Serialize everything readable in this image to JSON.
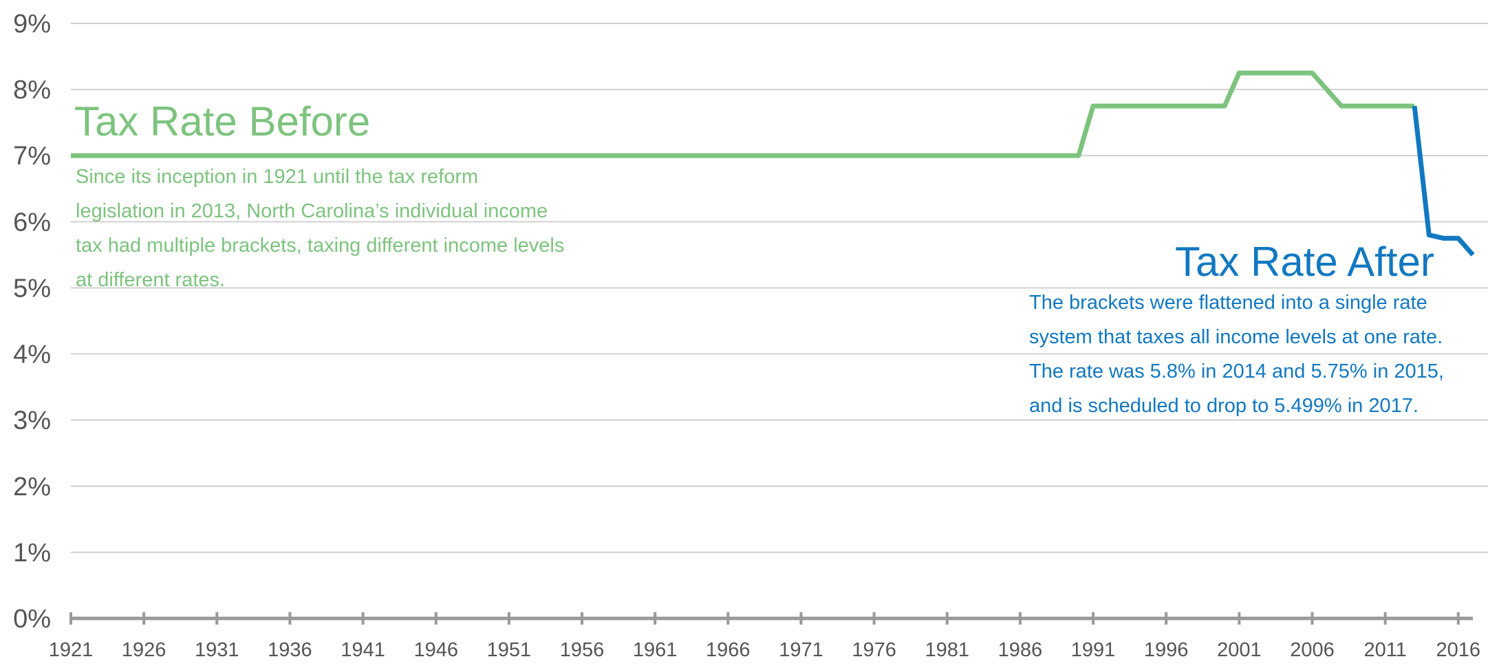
{
  "colors": {
    "before": "#7dc37e",
    "after": "#1278c0",
    "grid": "#d0d0d0",
    "axis": "#999999",
    "tick_text": "#555555"
  },
  "annotations": {
    "before_title": "Tax Rate Before",
    "before_body": "Since its inception in 1921 until the tax reform legislation in 2013, North Carolina’s individual income tax had multiple brackets, taxing different income levels at different rates.",
    "after_title": "Tax Rate After",
    "after_body": "The brackets were flattened into a single rate system that taxes all income levels at one rate. The rate was 5.8% in 2014 and 5.75% in 2015, and is scheduled to drop to 5.499% in 2017."
  },
  "chart_data": {
    "type": "line",
    "title": "",
    "xlabel": "",
    "ylabel": "",
    "xlim": [
      1921,
      2017
    ],
    "ylim": [
      0,
      9
    ],
    "grid": true,
    "legend": "none",
    "y_ticks": [
      0,
      1,
      2,
      3,
      4,
      5,
      6,
      7,
      8,
      9
    ],
    "y_tick_labels": [
      "0%",
      "1%",
      "2%",
      "3%",
      "4%",
      "5%",
      "6%",
      "7%",
      "8%",
      "9%"
    ],
    "x_ticks": [
      1921,
      1926,
      1931,
      1936,
      1941,
      1946,
      1951,
      1956,
      1961,
      1966,
      1971,
      1976,
      1981,
      1986,
      1991,
      1996,
      2001,
      2006,
      2011,
      2016
    ],
    "series": [
      {
        "key": "before",
        "x": [
          1921,
          1990,
          1991,
          2000,
          2001,
          2006,
          2008,
          2013
        ],
        "y": [
          7.0,
          7.0,
          7.75,
          7.75,
          8.25,
          8.25,
          7.75,
          7.75
        ]
      },
      {
        "key": "after",
        "x": [
          2013,
          2014,
          2015,
          2016,
          2017
        ],
        "y": [
          7.75,
          5.8,
          5.75,
          5.75,
          5.499
        ]
      }
    ]
  }
}
